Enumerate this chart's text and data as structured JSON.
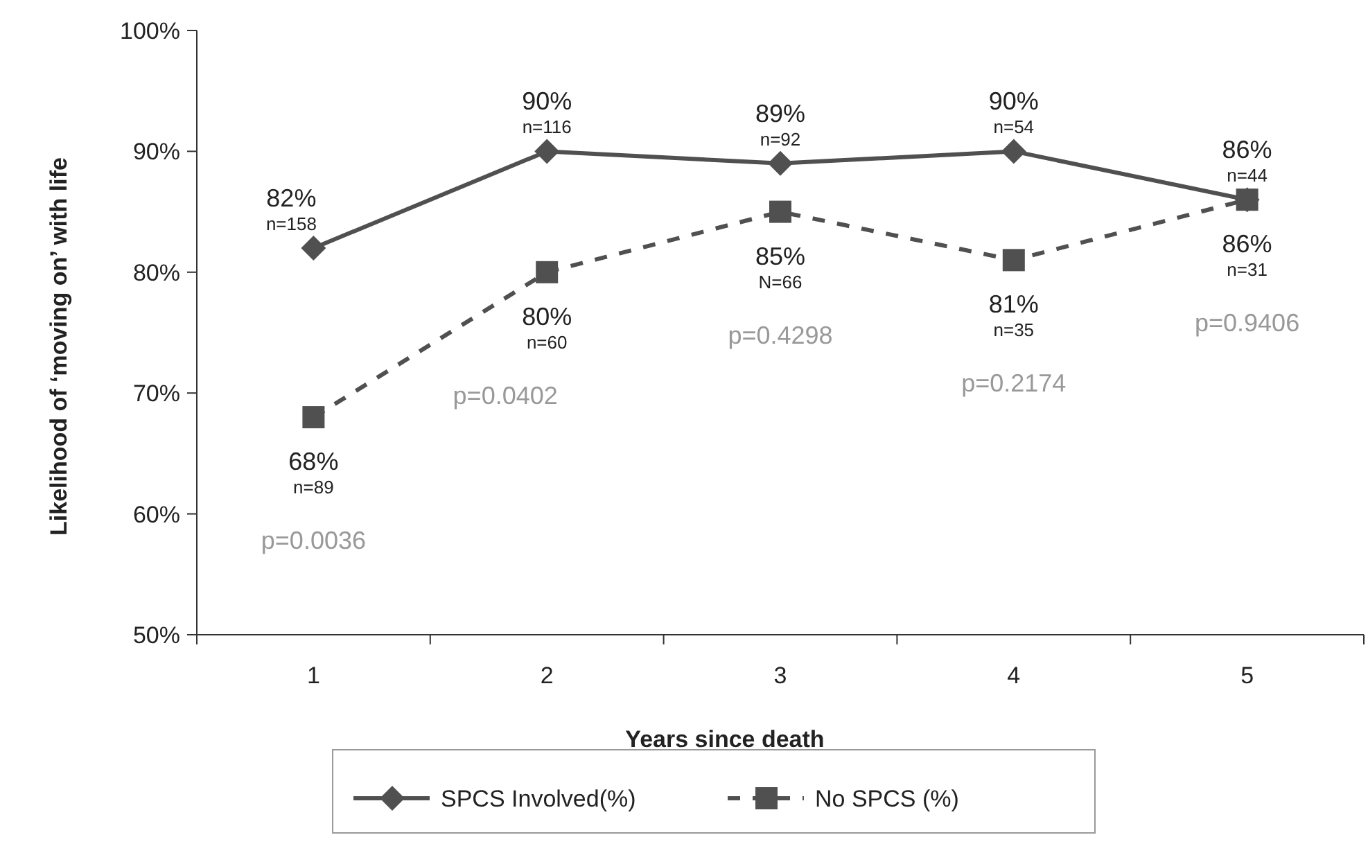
{
  "chart_data": {
    "type": "line",
    "xlabel": "Years since death",
    "ylabel": "Likelihood of ‘moving on’ with life",
    "categories": [
      "1",
      "2",
      "3",
      "4",
      "5"
    ],
    "series": [
      {
        "name": "SPCS Involved(%)",
        "color": "#505050",
        "values": [
          82,
          90,
          89,
          90,
          86
        ],
        "marker": "diamond",
        "line_style": "solid",
        "value_labels": [
          "82%",
          "90%",
          "89%",
          "90%",
          "86%"
        ]
      },
      {
        "name": "No SPCS (%)",
        "color": "#505050",
        "values": [
          68,
          80,
          85,
          81,
          86
        ],
        "marker": "square",
        "line_style": "dashed",
        "value_labels": [
          "68%",
          "80%",
          "85%",
          "81%",
          "86%"
        ]
      }
    ],
    "ylim": [
      50,
      100
    ],
    "yticks": [
      {
        "value": 50,
        "label": "50%"
      },
      {
        "value": 60,
        "label": "60%"
      },
      {
        "value": 70,
        "label": "70%"
      },
      {
        "value": 80,
        "label": "80%"
      },
      {
        "value": 90,
        "label": "90%"
      },
      {
        "value": 100,
        "label": "100%"
      }
    ],
    "annotations": [
      "n=158",
      "n=116",
      "n=92",
      "n=54",
      "n=44",
      "n=89",
      "n=60",
      "N=66",
      "n=35",
      "n=31",
      "p=0.0036",
      "p=0.0402",
      "p=0.4298",
      "p=0.2174",
      "p=0.9406"
    ],
    "legend": "bottom"
  }
}
